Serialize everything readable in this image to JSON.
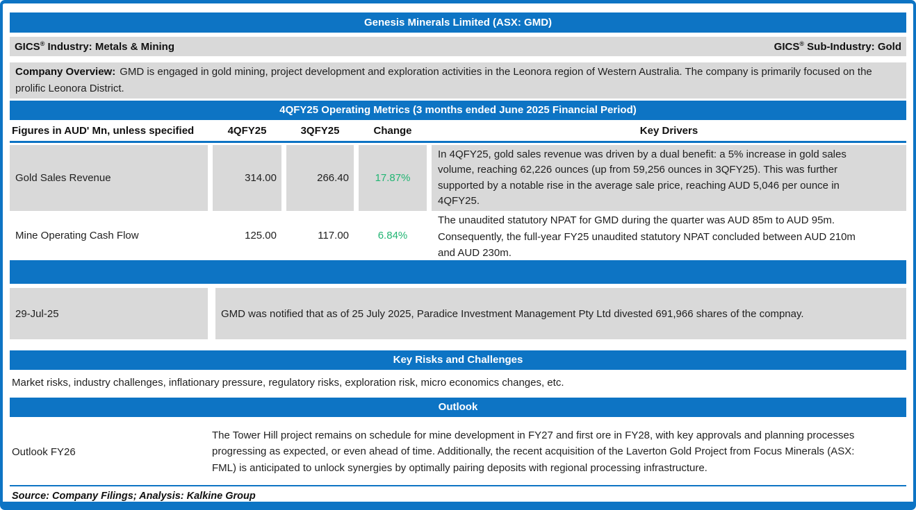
{
  "colors": {
    "accent_blue": "#0d74c4",
    "cell_gray": "#d9d9d9",
    "positive_green": "#22b573"
  },
  "header": {
    "title": "Genesis Minerals Limited (ASX: GMD)"
  },
  "gics": {
    "brand": "GICS",
    "reg": "®",
    "industry": " Industry: Metals & Mining",
    "sub_industry": " Sub-Industry: Gold"
  },
  "overview": {
    "label": "Company Overview:",
    "text": "GMD is engaged in gold mining, project development and exploration activities in the Leonora region of Western Australia. The company is primarily focused on the prolific Leonora District."
  },
  "metrics": {
    "section_title": "4QFY25 Operating Metrics (3 months ended June 2025 Financial Period)",
    "columns": [
      "Figures in AUD' Mn, unless specified",
      "4QFY25",
      "3QFY25",
      "Change",
      "Key Drivers"
    ],
    "rows": [
      {
        "name": "Gold Sales Revenue",
        "q4fy25": "314.00",
        "q3fy25": "266.40",
        "change": "17.87%",
        "driver": "In 4QFY25, gold sales revenue was driven by a dual benefit: a 5% increase in gold sales volume, reaching 62,226 ounces (up from 59,256 ounces in 3QFY25). This was further supported by a notable rise in the average sale price, reaching AUD 5,046 per ounce in 4QFY25."
      },
      {
        "name": "Mine Operating Cash Flow",
        "q4fy25": "125.00",
        "q3fy25": "117.00",
        "change": "6.84%",
        "driver": "The unaudited statutory NPAT for GMD during the quarter was AUD 85m to AUD 95m. Consequently, the full-year FY25 unaudited statutory NPAT concluded between AUD 210m and AUD 230m."
      }
    ]
  },
  "updates": {
    "section_title": "",
    "date": "29-Jul-25",
    "text": "GMD was notified that as of 25 July 2025, Paradice Investment Management Pty Ltd divested 691,966 shares of the compnay."
  },
  "risks": {
    "section_title": "Key Risks and Challenges",
    "text": "Market risks, industry challenges, inflationary pressure, regulatory risks, exploration risk, micro economics changes, etc."
  },
  "outlook": {
    "section_title": "Outlook",
    "label": "Outlook FY26",
    "text": "The Tower Hill project remains on schedule for mine development in FY27 and first ore in FY28, with key approvals and planning processes progressing as expected, or even ahead of time. Additionally, the recent acquisition of the Laverton Gold Project from Focus Minerals (ASX: FML) is anticipated to unlock synergies by optimally pairing deposits with regional processing infrastructure."
  },
  "footer": {
    "source": "Source: Company Filings; Analysis: Kalkine Group"
  }
}
